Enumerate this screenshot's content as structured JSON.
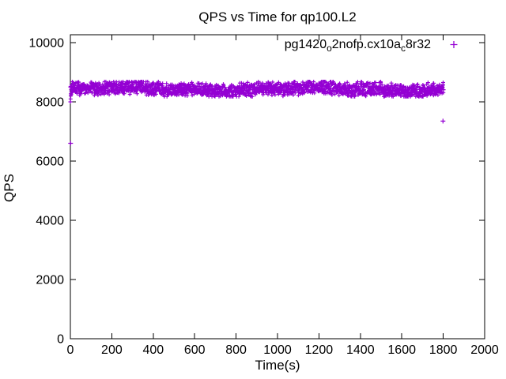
{
  "chart_data": {
    "type": "scatter",
    "title": "QPS vs Time for qp100.L2",
    "xlabel": "Time(s)",
    "ylabel": "QPS",
    "xlim": [
      0,
      2000
    ],
    "ylim": [
      0,
      10000
    ],
    "xticks": [
      0,
      200,
      400,
      600,
      800,
      1000,
      1200,
      1400,
      1600,
      1800,
      2000
    ],
    "yticks": [
      0,
      2000,
      4000,
      6000,
      8000,
      10000
    ],
    "grid": false,
    "background_color": "#ffffff",
    "axis_color": "#000000",
    "text_color": "#000000",
    "legend": {
      "position": "top-right-inside",
      "box": false,
      "entries": [
        {
          "label_plain": "pg1420_o2nofp.cx10a_c8r32",
          "label_parts": [
            {
              "text": "pg1420",
              "sub": false
            },
            {
              "text": "o",
              "sub": true
            },
            {
              "text": "2nofp.cx10a",
              "sub": false
            },
            {
              "text": "c",
              "sub": true
            },
            {
              "text": "8r32",
              "sub": false
            }
          ],
          "marker": "plus",
          "color": "#9400D3"
        }
      ]
    },
    "series": [
      {
        "name": "pg1420_o2nofp.cx10a_c8r32",
        "marker": "plus",
        "color": "#9400D3",
        "steady_band": {
          "t_start": 0,
          "t_end": 1802,
          "qps_center": 8430,
          "qps_spread": 250,
          "n_samples": 1800,
          "description": "dense flat band of per-second QPS samples, roughly 8200-8700 QPS for the whole run"
        },
        "ramp_points": [
          [
            0,
            8000
          ],
          [
            1,
            8100
          ],
          [
            2,
            8200
          ],
          [
            3,
            8280
          ]
        ],
        "outlier_points": [
          [
            1,
            6600
          ],
          [
            1799,
            7350
          ]
        ]
      }
    ]
  }
}
